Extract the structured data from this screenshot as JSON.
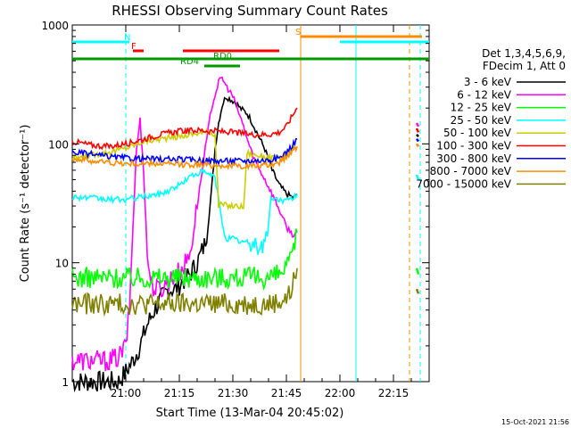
{
  "chart_data": {
    "type": "line",
    "title": "RHESSI Observing Summary Count Rates",
    "xlabel": "Start Time (13-Mar-04 20:45:02)",
    "ylabel": "Count Rate (s⁻¹ detector⁻¹)",
    "yscale": "log",
    "ylim": [
      1,
      1000
    ],
    "xlim_minutes": [
      0,
      100
    ],
    "x_unit": "minutes since 20:45:02",
    "x_ticks": [
      {
        "label": "21:00",
        "value": 15
      },
      {
        "label": "21:15",
        "value": 30
      },
      {
        "label": "21:30",
        "value": 45
      },
      {
        "label": "21:45",
        "value": 60
      },
      {
        "label": "22:00",
        "value": 75
      },
      {
        "label": "22:15",
        "value": 90
      }
    ],
    "y_ticks": [
      {
        "label": "1",
        "value": 1
      },
      {
        "label": "10",
        "value": 10
      },
      {
        "label": "100",
        "value": 100
      },
      {
        "label": "1000",
        "value": 1000
      }
    ],
    "legend": {
      "placement": "right",
      "header": [
        "Det 1,3,4,5,6,9,",
        "FDecim 1, Att 0"
      ]
    },
    "footer_date": "15-Oct-2021 21:56",
    "series": [
      {
        "name": "3 - 6 keV",
        "color": "#000000",
        "x": [
          0,
          10,
          13,
          15,
          17,
          19,
          21,
          23,
          25,
          27,
          29,
          31,
          33,
          35,
          37,
          38,
          39,
          40,
          41,
          42,
          43,
          44,
          45,
          46,
          47,
          48,
          49,
          50,
          52,
          54,
          56,
          58,
          60,
          62,
          63
        ],
        "y": [
          1,
          1,
          1,
          1.2,
          1.5,
          2,
          3,
          4,
          5,
          6,
          6,
          7,
          8,
          10,
          14,
          20,
          40,
          90,
          150,
          210,
          250,
          240,
          230,
          220,
          200,
          190,
          180,
          160,
          120,
          90,
          60,
          45,
          38,
          35,
          38
        ]
      },
      {
        "name": "6 - 12 keV",
        "color": "#ff00ff",
        "x": [
          0,
          10,
          13,
          15,
          16,
          17,
          18,
          19,
          20,
          21,
          22,
          23,
          25,
          27,
          29,
          31,
          33,
          35,
          37,
          39,
          41,
          42,
          43,
          44,
          45,
          46,
          47,
          48,
          49,
          50,
          51,
          52,
          54,
          56,
          58,
          60,
          62,
          63
        ],
        "y": [
          1.5,
          1.5,
          1.6,
          2,
          4,
          20,
          90,
          160,
          60,
          12,
          7,
          6,
          6,
          7,
          8,
          9,
          12,
          30,
          80,
          200,
          330,
          360,
          310,
          280,
          250,
          210,
          170,
          140,
          110,
          90,
          75,
          65,
          50,
          38,
          28,
          20,
          17,
          18
        ]
      },
      {
        "name": "12 - 25 keV",
        "color": "#00ff00",
        "x": [
          0,
          10,
          20,
          30,
          40,
          50,
          55,
          58,
          60,
          61,
          62,
          63
        ],
        "y": [
          7.5,
          7.5,
          7.5,
          7.5,
          7.5,
          7.5,
          7.5,
          8,
          9,
          10,
          13,
          18
        ]
      },
      {
        "name": "25 - 50 keV",
        "color": "#00ffff",
        "x": [
          0,
          5,
          10,
          15,
          20,
          25,
          30,
          33,
          36,
          38,
          40,
          42,
          43,
          44,
          45,
          46,
          47,
          48,
          50,
          52,
          54,
          56,
          58,
          60,
          62,
          63
        ],
        "y": [
          36,
          35,
          34,
          34,
          36,
          38,
          45,
          53,
          58,
          56,
          52,
          22,
          16,
          16,
          16,
          15.5,
          15,
          15,
          14.5,
          14,
          14,
          35,
          34,
          33,
          35,
          38
        ]
      },
      {
        "name": "50 - 100 keV",
        "color": "#cccc00",
        "x": [
          0,
          5,
          10,
          15,
          20,
          25,
          30,
          33,
          36,
          38,
          40,
          41,
          42,
          44,
          46,
          47,
          48,
          49,
          50,
          52,
          54,
          56,
          58,
          60,
          62,
          63
        ],
        "y": [
          75,
          80,
          85,
          92,
          105,
          110,
          115,
          120,
          124,
          125,
          122,
          30,
          31,
          30,
          30,
          30,
          29,
          85,
          82,
          80,
          78,
          76,
          75,
          80,
          90,
          95
        ]
      },
      {
        "name": "100 - 300 keV",
        "color": "#ff0000",
        "x": [
          0,
          5,
          10,
          15,
          20,
          25,
          30,
          35,
          40,
          45,
          50,
          55,
          58,
          60,
          62,
          63
        ],
        "y": [
          105,
          98,
          95,
          100,
          110,
          120,
          128,
          130,
          128,
          125,
          120,
          120,
          125,
          140,
          180,
          200
        ]
      },
      {
        "name": "300 - 800 keV",
        "color": "#0000ff",
        "x": [
          0,
          5,
          10,
          15,
          20,
          25,
          30,
          35,
          40,
          45,
          50,
          55,
          58,
          60,
          62,
          63
        ],
        "y": [
          85,
          82,
          78,
          76,
          75,
          74,
          74,
          73,
          72,
          72,
          72,
          73,
          76,
          85,
          100,
          110
        ]
      },
      {
        "name": "800 - 7000 keV",
        "color": "#ff8c00",
        "x": [
          0,
          5,
          10,
          15,
          20,
          25,
          30,
          35,
          40,
          45,
          50,
          55,
          58,
          60,
          62,
          63
        ],
        "y": [
          75,
          72,
          70,
          68,
          68,
          68,
          67,
          67,
          66,
          65,
          65,
          66,
          70,
          78,
          90,
          95
        ]
      },
      {
        "name": "7000 - 15000 keV",
        "color": "#808000",
        "x": [
          0,
          10,
          20,
          30,
          40,
          50,
          55,
          58,
          60,
          61,
          62,
          63
        ],
        "y": [
          4.5,
          4.5,
          4.5,
          4.5,
          4.5,
          4.5,
          4.5,
          4.7,
          5,
          5.5,
          7,
          9
        ]
      }
    ],
    "late_segment": {
      "x": [
        96.5,
        97
      ],
      "values": {
        "3 - 6 keV": [
          120,
          115
        ],
        "6 - 12 keV": [
          150,
          140
        ],
        "12 - 25 keV": [
          9,
          8
        ],
        "25 - 50 keV": [
          55,
          50
        ],
        "50 - 100 keV": [
          100,
          95
        ],
        "100 - 300 keV": [
          135,
          125
        ],
        "300 - 800 keV": [
          110,
          105
        ],
        "800 - 7000 keV": [
          100,
          95
        ],
        "7000 - 15000 keV": [
          6,
          5.5
        ]
      }
    },
    "flags": [
      {
        "label": "N",
        "color": "#00ffff",
        "label_at": 15,
        "bars": [
          [
            0,
            16
          ],
          [
            75,
            100
          ]
        ]
      },
      {
        "label": "F",
        "color": "#ff0000",
        "label_at": 17,
        "bars": [
          [
            17,
            20
          ],
          [
            31,
            58
          ]
        ]
      },
      {
        "label": "RD0",
        "color": "#009900",
        "label_at": 40,
        "bars": [
          [
            0,
            100
          ]
        ]
      },
      {
        "label": "RD4",
        "color": "#009900",
        "label_at": 36,
        "bars": [
          [
            37,
            47
          ]
        ]
      },
      {
        "label": "S",
        "color": "#ff8c00",
        "label_at": 63,
        "bars": [
          [
            64,
            98
          ]
        ]
      }
    ],
    "vertical_markers": [
      {
        "x": 15,
        "color": "#00ffff",
        "style": "dashed"
      },
      {
        "x": 64,
        "color": "#ff8c00",
        "style": "solid"
      },
      {
        "x": 79.5,
        "color": "#00ffff",
        "style": "solid"
      },
      {
        "x": 94.5,
        "color": "#ff8c00",
        "style": "dashed"
      },
      {
        "x": 97.5,
        "color": "#00ffff",
        "style": "dashed"
      }
    ]
  }
}
